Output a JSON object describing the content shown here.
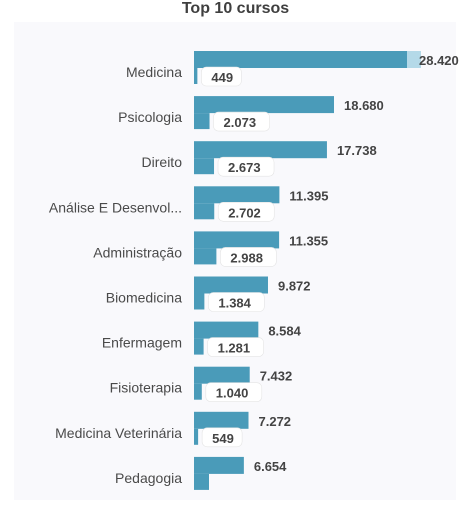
{
  "chart_data": {
    "type": "bar",
    "orientation": "horizontal",
    "title": "Top 10 cursos",
    "categories": [
      "Medicina",
      "Psicologia",
      "Direito",
      "Análise E Desenvol...",
      "Administração",
      "Biomedicina",
      "Enfermagem",
      "Fisioterapia",
      "Medicina Veterinária",
      "Pedagogia"
    ],
    "series": [
      {
        "values": [
          28420,
          18680,
          17738,
          11395,
          11355,
          9872,
          8584,
          7432,
          7272,
          6654
        ],
        "labels": [
          "28.420",
          "18.680",
          "17.738",
          "11.395",
          "11.355",
          "9.872",
          "8.584",
          "7.432",
          "7.272",
          "6.654"
        ]
      },
      {
        "values": [
          449,
          2073,
          2673,
          2702,
          2988,
          1384,
          1281,
          1040,
          549,
          0
        ],
        "labels": [
          "449",
          "2.073",
          "2.673",
          "2.702",
          "2.988",
          "1.384",
          "1.281",
          "1.040",
          "549",
          ""
        ]
      }
    ],
    "xlim": [
      0,
      28420
    ],
    "grid": false,
    "legend": "none"
  },
  "colors": {
    "bar": "#4a9bb9",
    "highlight": "#b4d9e8",
    "label_bg": "#ffffff"
  }
}
